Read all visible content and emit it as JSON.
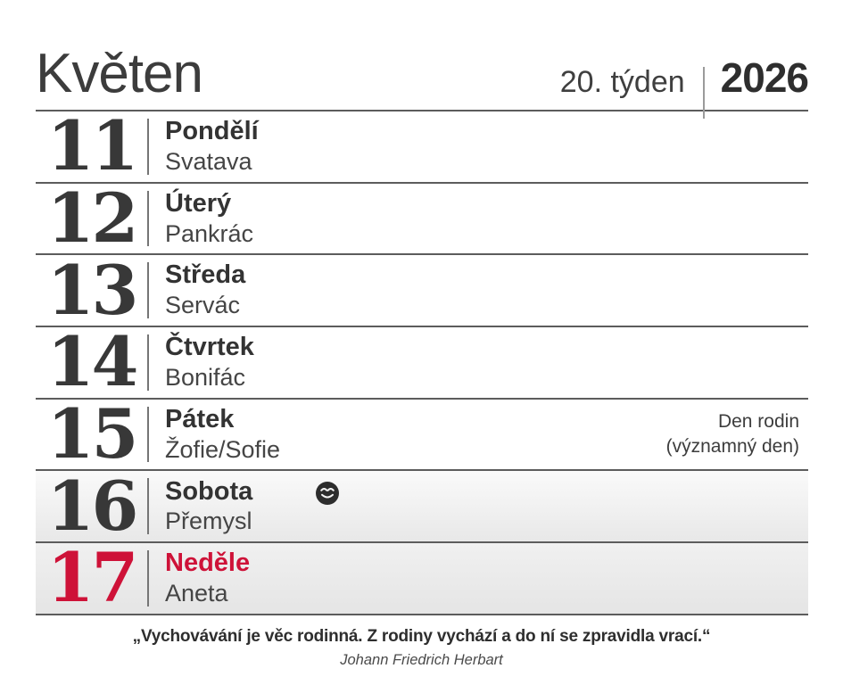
{
  "header": {
    "month": "Květen",
    "week": "20. týden",
    "year": "2026"
  },
  "days": [
    {
      "num": "11",
      "day": "Pondělí",
      "name": "Svatava",
      "note": [],
      "moon": false,
      "shaded": false,
      "sunday": false
    },
    {
      "num": "12",
      "day": "Úterý",
      "name": "Pankrác",
      "note": [],
      "moon": false,
      "shaded": false,
      "sunday": false
    },
    {
      "num": "13",
      "day": "Středa",
      "name": "Servác",
      "note": [],
      "moon": false,
      "shaded": false,
      "sunday": false
    },
    {
      "num": "14",
      "day": "Čtvrtek",
      "name": "Bonifác",
      "note": [],
      "moon": false,
      "shaded": false,
      "sunday": false
    },
    {
      "num": "15",
      "day": "Pátek",
      "name": "Žofie/Sofie",
      "note": [
        "Den rodin",
        "(významný den)"
      ],
      "moon": false,
      "shaded": false,
      "sunday": false
    },
    {
      "num": "16",
      "day": "Sobota",
      "name": "Přemysl",
      "note": [],
      "moon": true,
      "shaded": true,
      "sunday": false
    },
    {
      "num": "17",
      "day": "Neděle",
      "name": "Aneta",
      "note": [],
      "moon": false,
      "shaded": true,
      "sunday": true
    }
  ],
  "footer": {
    "quote": "„Vychovávání je věc rodinná. Z rodiny vychází a do ní se zpravidla vrací.“",
    "author": "Johann Friedrich Herbart"
  },
  "icons": {
    "moon_phase": "new-moon-face-icon"
  },
  "colors": {
    "accent_red": "#ce1238",
    "text_dark": "#383838",
    "line_gray": "#5c5c5c",
    "shaded_row_bg": "#e8e8e8"
  }
}
